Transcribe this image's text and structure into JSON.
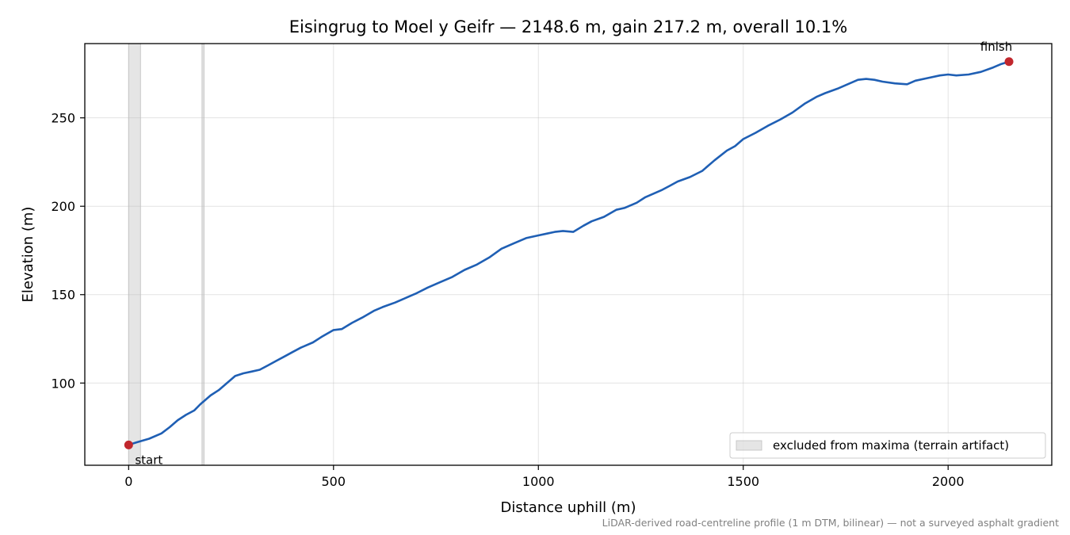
{
  "chart_data": {
    "type": "line",
    "title": "Eisingrug to Moel y Geifr — 2148.6 m, gain 217.2 m, overall 10.1%",
    "xlabel": "Distance uphill (m)",
    "ylabel": "Elevation (m)",
    "xlim": [
      -107,
      2253
    ],
    "ylim": [
      53.5,
      292
    ],
    "xticks": [
      0,
      500,
      1000,
      1500,
      2000
    ],
    "yticks": [
      100,
      150,
      200,
      250
    ],
    "xtick_labels": [
      "0",
      "500",
      "1000",
      "1500",
      "2000"
    ],
    "ytick_labels": [
      "100",
      "150",
      "200",
      "250"
    ],
    "grid": true,
    "line_color": "#1f5fb4",
    "marker_color": "#c1272d",
    "band_color": "#bebebe",
    "series": [
      {
        "x": [
          0,
          20,
          50,
          80,
          100,
          120,
          140,
          160,
          175,
          185,
          200,
          220,
          240,
          260,
          280,
          300,
          320,
          340,
          360,
          380,
          400,
          420,
          450,
          470,
          500,
          520,
          545,
          570,
          600,
          620,
          650,
          680,
          700,
          730,
          760,
          790,
          820,
          850,
          880,
          910,
          940,
          970,
          1000,
          1020,
          1040,
          1060,
          1085,
          1110,
          1130,
          1160,
          1190,
          1210,
          1240,
          1260,
          1280,
          1300,
          1320,
          1340,
          1370,
          1400,
          1430,
          1460,
          1480,
          1500,
          1530,
          1560,
          1590,
          1620,
          1650,
          1680,
          1700,
          1730,
          1760,
          1780,
          1800,
          1820,
          1840,
          1870,
          1900,
          1920,
          1950,
          1980,
          2000,
          2020,
          2050,
          2080,
          2110,
          2130,
          2148.6
        ],
        "y": [
          65,
          66.5,
          68.5,
          71.5,
          75,
          79,
          82,
          84.5,
          88,
          90,
          93,
          96,
          100,
          104,
          105.5,
          106.5,
          107.5,
          110,
          112.5,
          115,
          117.5,
          120,
          123,
          126,
          130,
          130.5,
          134,
          137,
          141,
          143,
          145.5,
          148.5,
          150.5,
          154,
          157,
          160,
          164,
          167,
          171,
          176,
          179,
          182,
          183.5,
          184.5,
          185.5,
          186,
          185.5,
          189,
          191.5,
          194,
          198,
          199,
          202,
          205,
          207,
          209,
          211.5,
          214,
          216.5,
          220,
          226,
          231.5,
          234,
          238,
          241.5,
          245.5,
          249,
          253,
          258,
          262,
          264,
          266.5,
          269.5,
          271.5,
          272,
          271.5,
          270.5,
          269.5,
          269,
          271,
          272.5,
          274,
          274.5,
          274,
          274.5,
          276,
          278.5,
          280.5,
          281.8
        ]
      }
    ],
    "markers": [
      {
        "x": 0,
        "y": 65,
        "label": "start"
      },
      {
        "x": 2148.6,
        "y": 281.8,
        "label": "finish"
      }
    ],
    "excluded_bands": [
      {
        "x0": 0,
        "x1": 29
      },
      {
        "x0": 179,
        "x1": 184
      }
    ],
    "legend": {
      "label": "excluded from maxima (terrain artifact)",
      "position": "lower-right"
    },
    "footnote": "LiDAR-derived road-centreline profile (1 m DTM, bilinear) — not a surveyed asphalt gradient"
  }
}
